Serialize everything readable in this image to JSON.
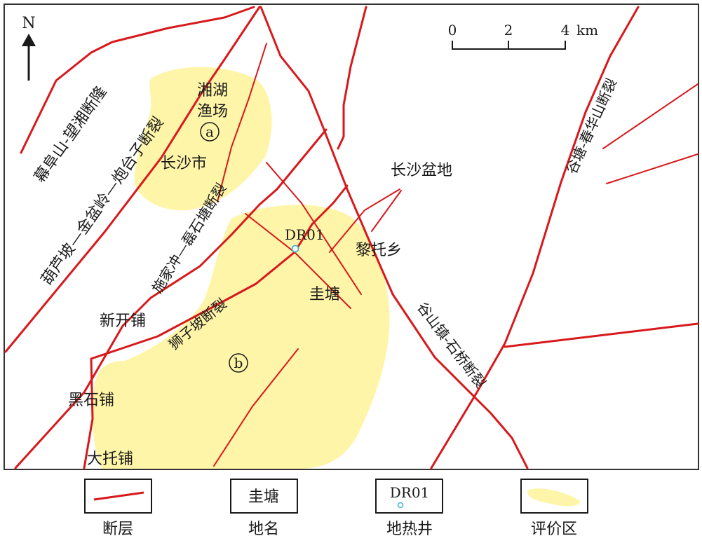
{
  "north": "N",
  "scale": {
    "ticks": [
      "0",
      "2",
      "4"
    ],
    "unit": "km"
  },
  "faults": {
    "f1": "幕阜山-望湘断隆",
    "f2": "葫芦坡—金盆岭—炮台子断裂",
    "f3": "施家冲—磊石塘断裂",
    "f4": "狮子坡断裂",
    "f5": "谷山镇-石桥断裂",
    "f6": "谷塘-春华山断裂"
  },
  "places": {
    "xianghu": "湘湖",
    "yuchang": "渔场",
    "changsha": "长沙市",
    "basin": "长沙盆地",
    "litou": "黎托乡",
    "guitang": "圭塘",
    "xinkai": "新开铺",
    "heishi": "黑石铺",
    "datuo": "大托铺"
  },
  "areas": {
    "a": "a",
    "b": "b"
  },
  "well": {
    "name": "DR01",
    "color": "#3fb6d8"
  },
  "legend": {
    "fault": "断层",
    "place_sample": "圭塘",
    "place": "地名",
    "well_sample": "DR01",
    "well": "地热井",
    "area": "评价区"
  },
  "colors": {
    "fault": "#d7191c",
    "area": "#fff5a8",
    "frame": "#333333"
  }
}
